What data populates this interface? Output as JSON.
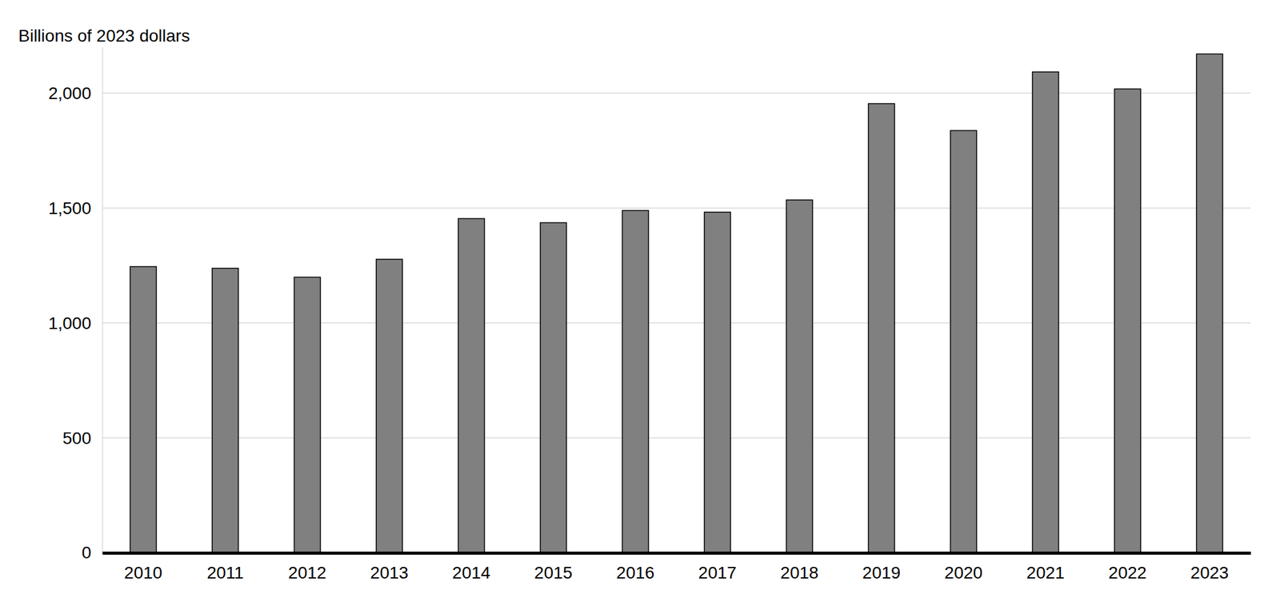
{
  "chart_data": {
    "type": "bar",
    "y_label": "Billions of 2023 dollars",
    "categories": [
      "2010",
      "2011",
      "2012",
      "2013",
      "2014",
      "2015",
      "2016",
      "2017",
      "2018",
      "2019",
      "2020",
      "2021",
      "2022",
      "2023"
    ],
    "values": [
      1245,
      1238,
      1199,
      1277,
      1454,
      1436,
      1489,
      1482,
      1535,
      1954,
      1837,
      2092,
      2018,
      2170
    ],
    "color": "#808080",
    "ylim": [
      0,
      2200
    ],
    "yticks": [
      0,
      500,
      {
        "value": 1000,
        "label": "1,000"
      },
      {
        "value": 1500,
        "label": "1,500"
      },
      {
        "value": 2000,
        "label": "2,000"
      }
    ],
    "grid": true
  }
}
